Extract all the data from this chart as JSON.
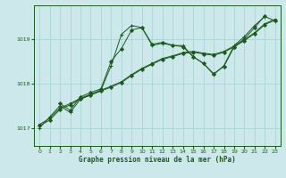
{
  "bg_color": "#cce8ea",
  "grid_color": "#aad4d6",
  "line_color": "#1a5c1a",
  "xlabel": "Graphe pression niveau de la mer (hPa)",
  "xlabel_color": "#1a5c1a",
  "xlim": [
    -0.5,
    23.5
  ],
  "ylim": [
    1016.6,
    1019.75
  ],
  "yticks": [
    1017,
    1018,
    1019
  ],
  "xticks": [
    0,
    1,
    2,
    3,
    4,
    5,
    6,
    7,
    8,
    9,
    10,
    11,
    12,
    13,
    14,
    15,
    16,
    17,
    18,
    19,
    20,
    21,
    22,
    23
  ],
  "series": [
    {
      "x": [
        0,
        1,
        2,
        3,
        4,
        5,
        6,
        7,
        8,
        9,
        10,
        11,
        12,
        13,
        14,
        15,
        16,
        17,
        18,
        19,
        20,
        21,
        22,
        23
      ],
      "y": [
        1017.0,
        1017.25,
        1017.5,
        1017.35,
        1017.65,
        1017.75,
        1017.85,
        1018.4,
        1019.1,
        1019.3,
        1019.25,
        1018.85,
        1018.9,
        1018.85,
        1018.85,
        1018.6,
        1018.45,
        1018.2,
        1018.4,
        1018.85,
        1019.05,
        1019.3,
        1019.5,
        1019.4
      ],
      "marker": "+"
    },
    {
      "x": [
        0,
        1,
        2,
        3,
        4,
        5,
        6,
        7,
        8,
        9,
        10,
        11,
        12,
        13,
        14,
        15,
        16,
        17,
        18,
        19,
        20,
        21,
        22,
        23
      ],
      "y": [
        1017.05,
        1017.18,
        1017.42,
        1017.52,
        1017.65,
        1017.74,
        1017.83,
        1017.92,
        1018.02,
        1018.18,
        1018.32,
        1018.43,
        1018.54,
        1018.6,
        1018.67,
        1018.7,
        1018.66,
        1018.63,
        1018.7,
        1018.82,
        1018.96,
        1019.12,
        1019.32,
        1019.42
      ],
      "marker": "D"
    },
    {
      "x": [
        0,
        1,
        2,
        3,
        4,
        5,
        6,
        7,
        8,
        9,
        10,
        11,
        12,
        13,
        14,
        15,
        16,
        17,
        18,
        19,
        20,
        21,
        22,
        23
      ],
      "y": [
        1017.08,
        1017.22,
        1017.45,
        1017.55,
        1017.67,
        1017.76,
        1017.85,
        1017.94,
        1018.04,
        1018.2,
        1018.34,
        1018.45,
        1018.56,
        1018.62,
        1018.69,
        1018.72,
        1018.68,
        1018.65,
        1018.72,
        1018.84,
        1018.98,
        1019.14,
        1019.34,
        1019.44
      ],
      "marker": "s"
    },
    {
      "x": [
        2,
        3,
        4,
        5,
        6,
        7,
        8,
        9,
        10,
        11,
        12,
        13,
        14,
        15,
        16,
        17,
        18,
        19,
        20,
        21,
        22
      ],
      "y": [
        1017.55,
        1017.4,
        1017.7,
        1017.8,
        1017.88,
        1018.5,
        1018.78,
        1019.2,
        1019.25,
        1018.88,
        1018.92,
        1018.86,
        1018.82,
        1018.6,
        1018.45,
        1018.22,
        1018.38,
        1018.82,
        1019.0,
        1019.25,
        1019.52
      ],
      "marker": "D"
    }
  ]
}
